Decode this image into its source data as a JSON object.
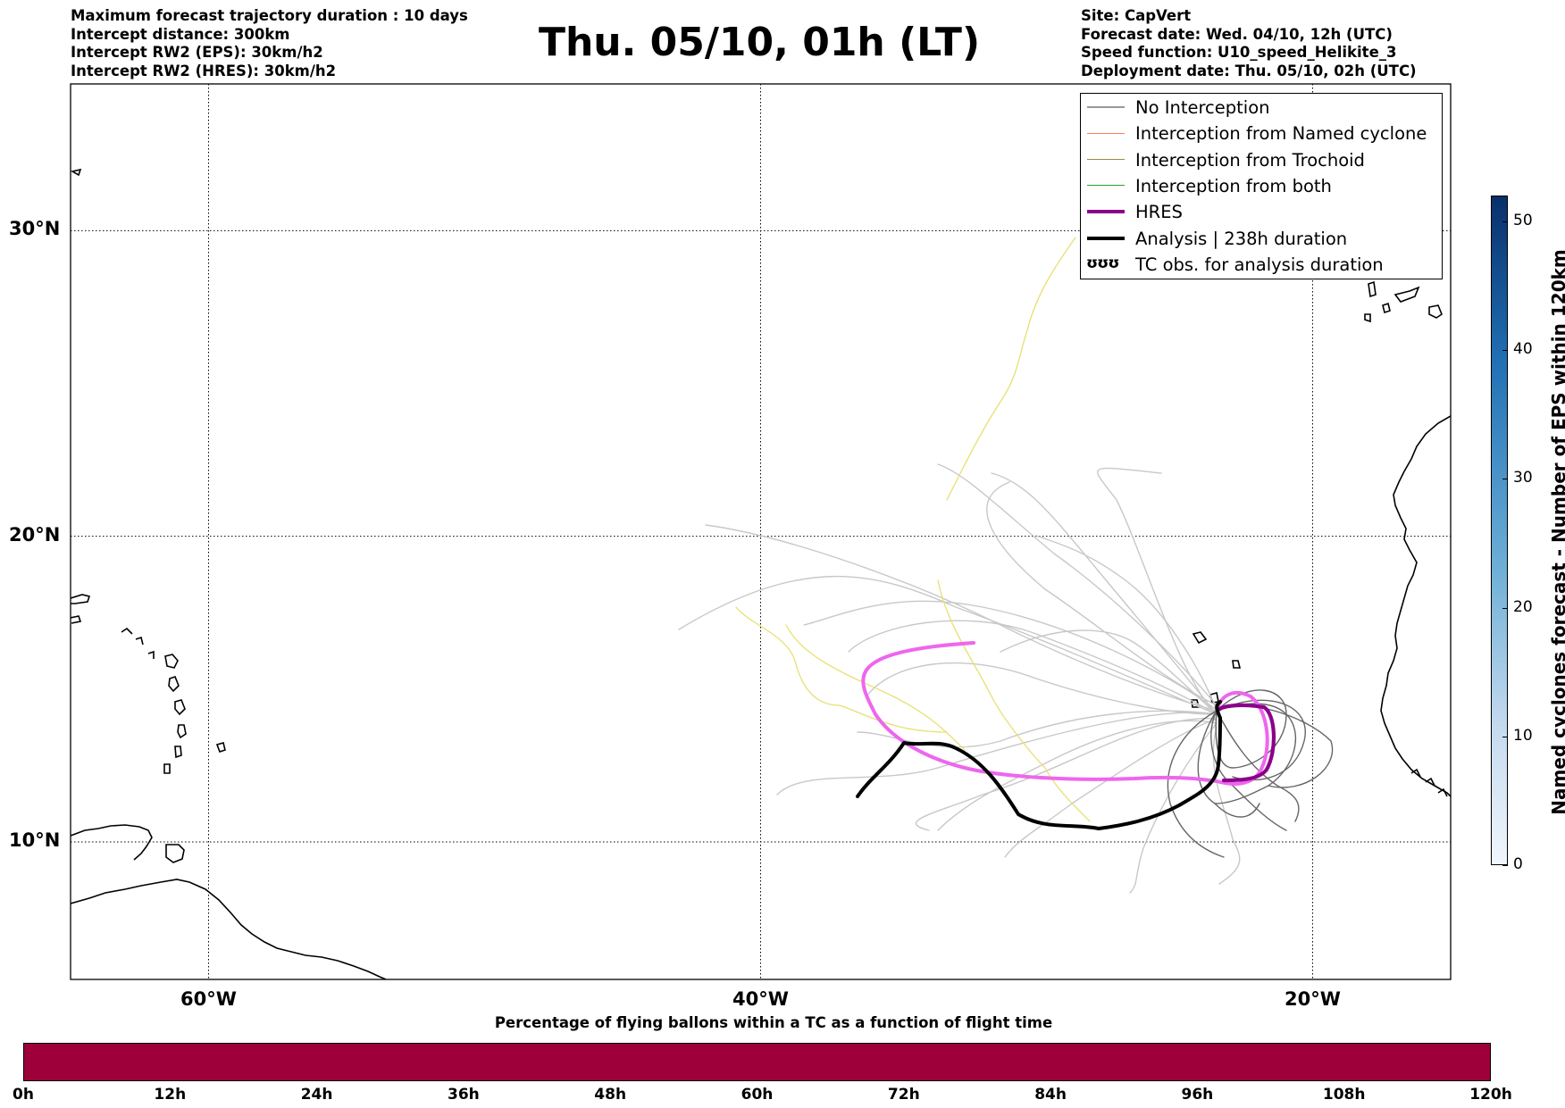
{
  "header": {
    "left_lines": [
      "Maximum forecast trajectory duration : 10 days",
      "Intercept distance: 300km",
      "Intercept RW2 (EPS):  30km/h2",
      "Intercept RW2 (HRES): 30km/h2"
    ],
    "title": "Thu. 05/10, 01h (LT)",
    "right_lines": [
      "Site: CapVert",
      "Forecast date: Wed. 04/10, 12h (UTC)",
      "Speed function: U10_speed_Helikite_3",
      "Deployment date: Thu. 05/10, 02h (UTC)"
    ]
  },
  "map": {
    "lon_range": [
      -65,
      -15
    ],
    "lat_range": [
      5.5,
      34.8
    ],
    "lat_ticks": [
      {
        "value": 30,
        "label": "30°N"
      },
      {
        "value": 20,
        "label": "20°N"
      },
      {
        "value": 10,
        "label": "10°N"
      }
    ],
    "lon_ticks": [
      {
        "value": -60,
        "label": "60°W"
      },
      {
        "value": -40,
        "label": "40°W"
      },
      {
        "value": -20,
        "label": "20°W"
      }
    ],
    "gridlines": true,
    "colors": {
      "no_interception": "#999999",
      "named_cyclone": "#ff7f50",
      "trochoid": "#9b8c3c",
      "both": "#2ca02c",
      "hres": "#8b008b",
      "analysis": "#000000",
      "eps_light": "#c8c8c8",
      "eps_dark": "#666666",
      "trochoid_tracks": "#e8e070",
      "hres_forecast": "#ee66ee"
    }
  },
  "legend": {
    "items": [
      {
        "label": "No Interception",
        "color": "#999999",
        "width": 1.2
      },
      {
        "label": "Interception from Named cyclone",
        "color": "#ff7f50",
        "width": 1.2
      },
      {
        "label": "Interception from Trochoid",
        "color": "#9b8c3c",
        "width": 1.2
      },
      {
        "label": "Interception from both",
        "color": "#2ca02c",
        "width": 1.2
      },
      {
        "label": "HRES",
        "color": "#8b008b",
        "width": 4
      },
      {
        "label": "Analysis | 238h duration",
        "color": "#000000",
        "width": 4
      }
    ],
    "tc_obs": {
      "glyph": "ʊʊʊ",
      "label": "TC obs. for analysis duration"
    }
  },
  "colorbar_vertical": {
    "label": "Named cyclones forecast - Number of EPS within 120km",
    "ticks": [
      0,
      10,
      20,
      30,
      40,
      50
    ],
    "range": [
      0,
      52
    ]
  },
  "colorbar_horizontal": {
    "label": "Percentage of flying ballons within a TC as a function of flight time",
    "color": "#9e003a",
    "ticks": [
      "0h",
      "12h",
      "24h",
      "36h",
      "48h",
      "60h",
      "72h",
      "84h",
      "96h",
      "108h",
      "120h"
    ]
  }
}
